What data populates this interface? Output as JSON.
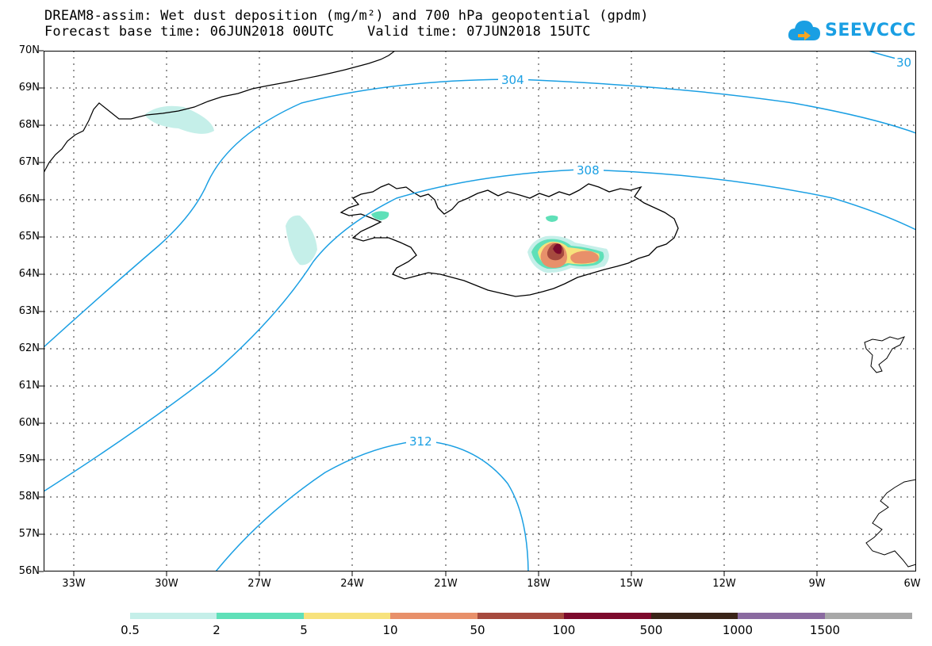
{
  "header": {
    "title_line_1": "DREAM8-assim: Wet dust deposition (mg/m²) and 700 hPa geopotential (gpdm)",
    "title_line_2": "Forecast base time: 06JUN2018 00UTC    Valid time: 07JUN2018 15UTC",
    "logo_text": "SEEVCCC"
  },
  "axes": {
    "lat_labels": [
      "70N",
      "69N",
      "68N",
      "67N",
      "66N",
      "65N",
      "64N",
      "63N",
      "62N",
      "61N",
      "60N",
      "59N",
      "58N",
      "57N",
      "56N"
    ],
    "lon_labels": [
      "33W",
      "30W",
      "27W",
      "24W",
      "21W",
      "18W",
      "15W",
      "12W",
      "9W",
      "6W"
    ]
  },
  "map": {
    "lat_range": [
      56,
      70
    ],
    "lon_range": [
      -34.2,
      -6
    ],
    "gridlines": true,
    "contour_color": "#1a9fe3",
    "contours": [
      {
        "label": "304"
      },
      {
        "label": "308"
      },
      {
        "label": "312"
      },
      {
        "label": "30"
      }
    ]
  },
  "legend": {
    "labels": [
      "0.5",
      "2",
      "5",
      "10",
      "50",
      "100",
      "500",
      "1000",
      "1500"
    ],
    "colors": [
      "#c5efe9",
      "#5fe0b8",
      "#f7e27c",
      "#e8906a",
      "#a64a3e",
      "#7c0a2c",
      "#3a2418",
      "#8a6aa0",
      "#a8a8a8"
    ]
  }
}
